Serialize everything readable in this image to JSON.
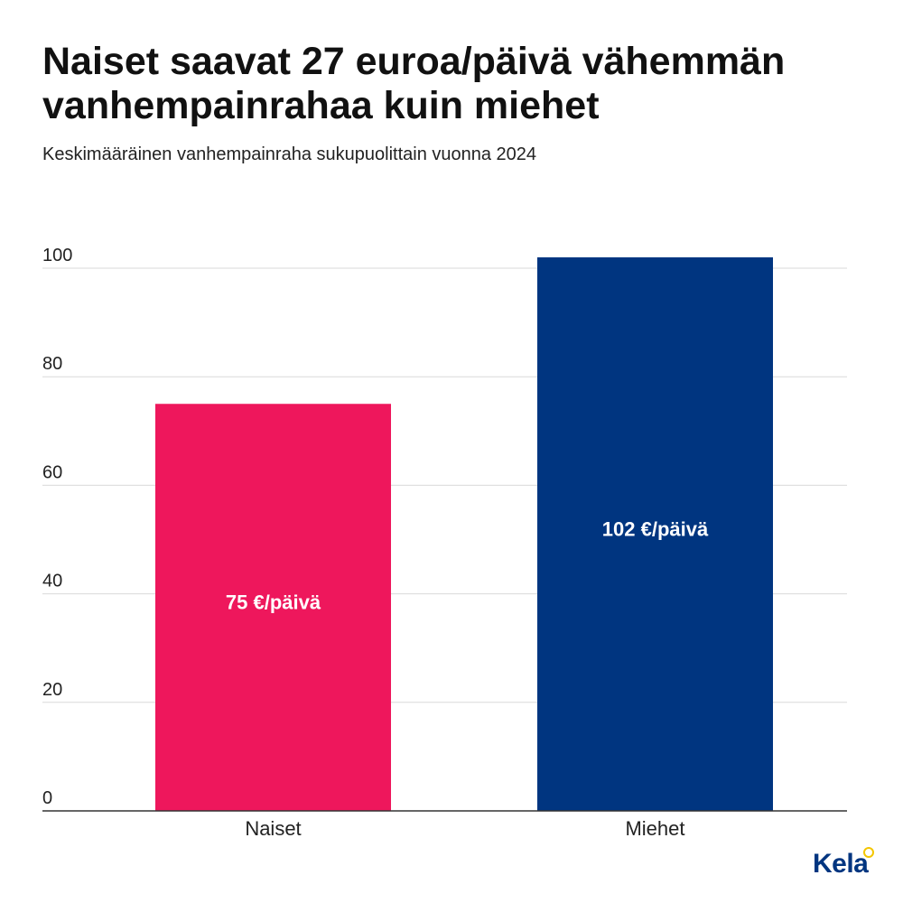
{
  "title": "Naiset saavat 27 euroa/päivä vähemmän vanhempainrahaa kuin miehet",
  "subtitle": "Keskimääräinen vanhempainraha sukupuolittain vuonna 2024",
  "logo": {
    "text": "Kela"
  },
  "colors": {
    "naiset": "#ee175c",
    "miehet": "#003580",
    "grid": "#d9d9d9",
    "axis": "#333333",
    "logo_accent": "#f4c600"
  },
  "chart_data": {
    "type": "bar",
    "categories": [
      "Naiset",
      "Miehet"
    ],
    "values": [
      75,
      102
    ],
    "data_labels": [
      "75 €/päivä",
      "102 €/päivä"
    ],
    "ylim": [
      0,
      100
    ],
    "yticks": [
      "0",
      "20",
      "40",
      "60",
      "80",
      "100"
    ],
    "grid": true
  }
}
